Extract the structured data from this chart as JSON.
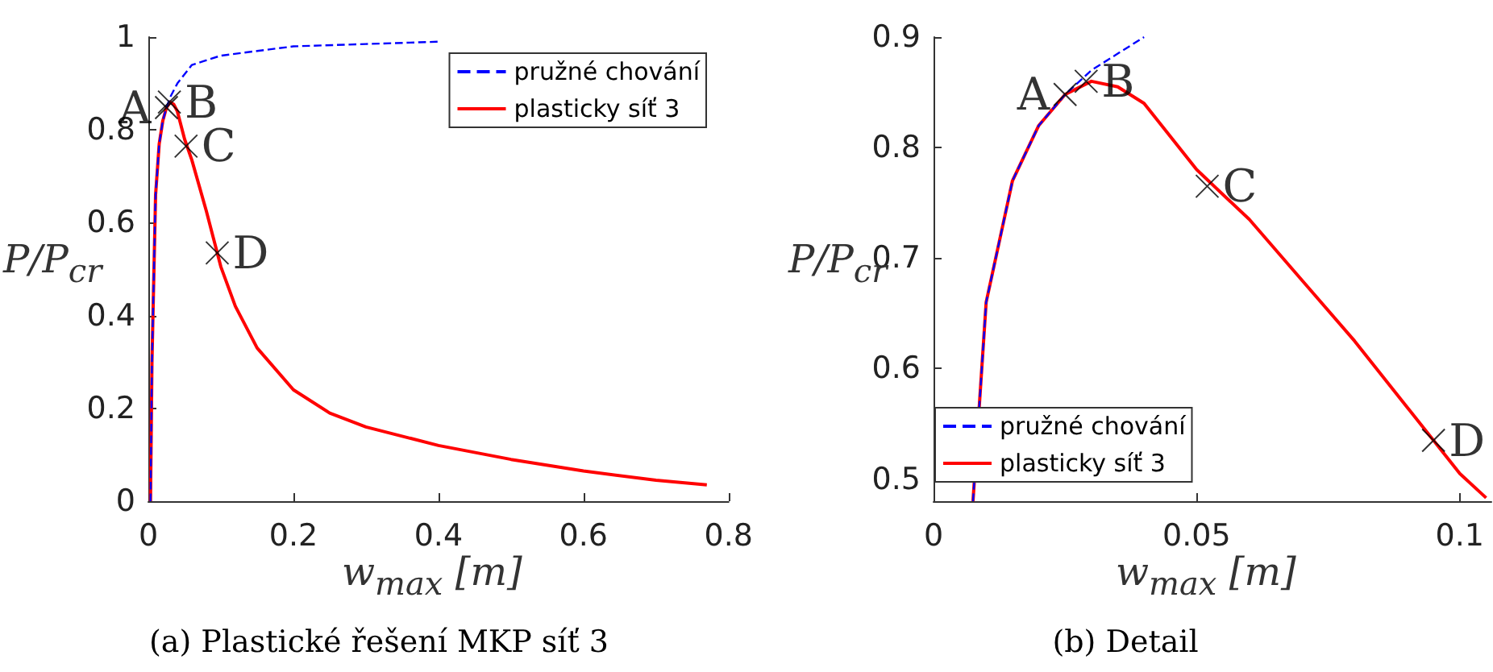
{
  "chart_data": [
    {
      "type": "line",
      "title": "(a) Plastické řešení MKP síť 3",
      "xlabel": "w$_{max}$ [m]",
      "ylabel": "P/P$_{cr}$",
      "xlim": [
        0,
        0.8
      ],
      "xticks": [
        0,
        0.2,
        0.4,
        0.6,
        0.8
      ],
      "ylim": [
        0,
        1
      ],
      "yticks": [
        0,
        0.2,
        0.4,
        0.6,
        0.8,
        1
      ],
      "grid": false,
      "legend": "top right",
      "marker": "none",
      "series": [
        {
          "name": "pružné chování",
          "color": "#0000ff",
          "line_style": "dashed",
          "x": [
            0.003,
            0.005,
            0.0075,
            0.01,
            0.015,
            0.02,
            0.025,
            0.03,
            0.04,
            0.06,
            0.1,
            0.15,
            0.2,
            0.3,
            0.4
          ],
          "values": [
            0,
            0.3,
            0.48,
            0.66,
            0.77,
            0.82,
            0.848,
            0.87,
            0.9,
            0.94,
            0.96,
            0.97,
            0.98,
            0.985,
            0.99
          ]
        },
        {
          "name": "plasticky síť 3",
          "color": "#ff0000",
          "line_style": "solid",
          "x": [
            0.003,
            0.005,
            0.0075,
            0.01,
            0.015,
            0.02,
            0.025,
            0.03,
            0.035,
            0.04,
            0.05,
            0.06,
            0.07,
            0.08,
            0.09,
            0.1,
            0.12,
            0.15,
            0.2,
            0.25,
            0.3,
            0.4,
            0.5,
            0.6,
            0.7,
            0.77
          ],
          "values": [
            0,
            0.3,
            0.48,
            0.66,
            0.77,
            0.82,
            0.848,
            0.86,
            0.855,
            0.84,
            0.78,
            0.735,
            0.68,
            0.625,
            0.565,
            0.505,
            0.42,
            0.33,
            0.24,
            0.19,
            0.16,
            0.12,
            0.09,
            0.065,
            0.045,
            0.035
          ]
        }
      ],
      "annotations": [
        {
          "text": "A",
          "x": 0.025,
          "y": 0.848
        },
        {
          "text": "B",
          "x": 0.029,
          "y": 0.86
        },
        {
          "text": "C",
          "x": 0.052,
          "y": 0.765
        },
        {
          "text": "D",
          "x": 0.095,
          "y": 0.535
        }
      ]
    },
    {
      "type": "line",
      "title": "(b) Detail",
      "xlabel": "w$_{max}$ [m]",
      "ylabel": "P/P$_{cr}$",
      "xlim": [
        0,
        0.106
      ],
      "xticks": [
        0,
        0.05,
        0.1
      ],
      "ylim": [
        0.48,
        0.9
      ],
      "yticks": [
        0.5,
        0.6,
        0.7,
        0.8,
        0.9
      ],
      "grid": false,
      "legend": "bottom",
      "marker": "none",
      "series": [
        {
          "name": "pružné chování",
          "color": "#0000ff",
          "line_style": "dashed",
          "x": [
            0.0075,
            0.01,
            0.015,
            0.02,
            0.025,
            0.03,
            0.035,
            0.04
          ],
          "values": [
            0.48,
            0.66,
            0.77,
            0.82,
            0.848,
            0.87,
            0.885,
            0.9
          ]
        },
        {
          "name": "plasticky síť 3",
          "color": "#ff0000",
          "line_style": "solid",
          "x": [
            0.0075,
            0.01,
            0.015,
            0.02,
            0.025,
            0.03,
            0.035,
            0.04,
            0.05,
            0.06,
            0.07,
            0.08,
            0.09,
            0.095,
            0.1,
            0.105
          ],
          "values": [
            0.48,
            0.66,
            0.77,
            0.82,
            0.848,
            0.86,
            0.855,
            0.84,
            0.78,
            0.735,
            0.68,
            0.625,
            0.565,
            0.535,
            0.505,
            0.483
          ]
        }
      ],
      "annotations": [
        {
          "text": "A",
          "x": 0.025,
          "y": 0.848
        },
        {
          "text": "B",
          "x": 0.029,
          "y": 0.86
        },
        {
          "text": "C",
          "x": 0.052,
          "y": 0.765
        },
        {
          "text": "D",
          "x": 0.095,
          "y": 0.535
        }
      ]
    }
  ]
}
